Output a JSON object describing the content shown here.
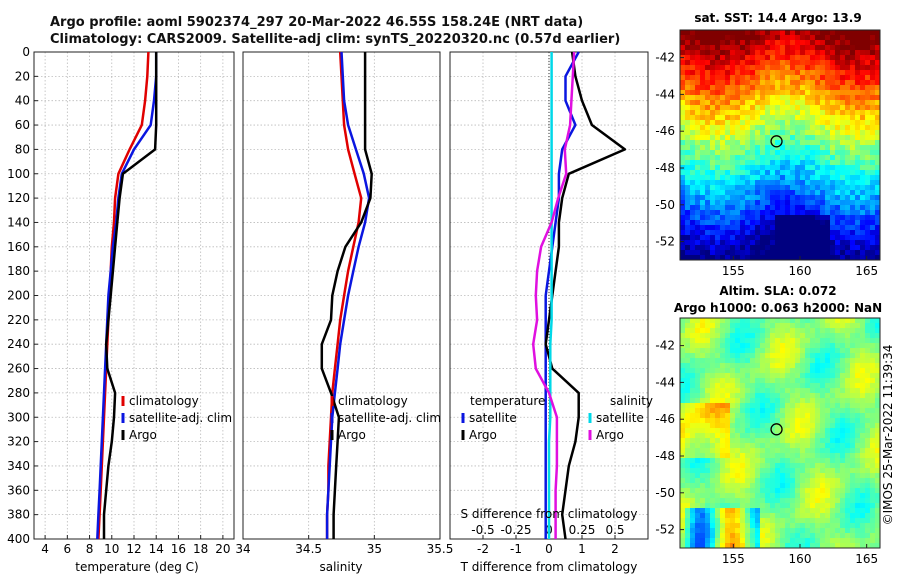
{
  "titles": {
    "line1": "Argo profile: aoml 5902374_297 20-Mar-2022 46.55S 158.24E (NRT data)",
    "line2": "Climatology: CARS2009. Satellite-adj clim: synTS_20220320.nc (0.57d earlier)"
  },
  "colors": {
    "climatology": "#e00000",
    "satellite": "#0a16e0",
    "argo": "#000000",
    "sat_salinity": "#00d8e8",
    "argo_salinity_diff": "#e010e0"
  },
  "depth_axis": {
    "ylim": [
      0,
      400
    ],
    "ticks": [
      0,
      20,
      40,
      60,
      80,
      100,
      120,
      140,
      160,
      180,
      200,
      220,
      240,
      260,
      280,
      300,
      320,
      340,
      360,
      380,
      400
    ]
  },
  "chart_data": [
    {
      "type": "line",
      "title": "",
      "xlabel": "temperature (deg C)",
      "xlim": [
        3,
        21
      ],
      "xticks": [
        4,
        6,
        8,
        10,
        12,
        14,
        16,
        18,
        20
      ],
      "depth": [
        0,
        20,
        40,
        60,
        80,
        100,
        120,
        140,
        160,
        180,
        200,
        220,
        240,
        260,
        280,
        300,
        320,
        340,
        360,
        380,
        400
      ],
      "series": [
        {
          "name": "climatology",
          "color": "#e00000",
          "values": [
            13.3,
            13.2,
            13.0,
            12.7,
            11.6,
            10.6,
            10.3,
            10.2,
            10.0,
            9.9,
            9.8,
            9.7,
            9.6,
            9.5,
            9.4,
            9.3,
            9.2,
            9.1,
            9.0,
            8.9,
            8.8
          ]
        },
        {
          "name": "satellite-adj. clim",
          "color": "#0a16e0",
          "values": [
            14.0,
            14.0,
            13.8,
            13.5,
            12.0,
            10.9,
            10.6,
            10.4,
            10.1,
            9.9,
            9.7,
            9.6,
            9.5,
            9.4,
            9.3,
            9.2,
            9.1,
            9.0,
            8.9,
            8.8,
            8.7
          ]
        },
        {
          "name": "Argo",
          "color": "#000000",
          "values": [
            14.0,
            14.0,
            14.0,
            14.0,
            13.9,
            11.0,
            10.7,
            10.5,
            10.3,
            10.1,
            9.9,
            9.7,
            9.5,
            9.6,
            10.3,
            10.2,
            10.0,
            9.7,
            9.5,
            9.3,
            9.3
          ]
        }
      ],
      "legend": [
        "climatology",
        "satellite-adj. clim",
        "Argo"
      ],
      "legend_placement": "bottom-right"
    },
    {
      "type": "line",
      "xlabel": "salinity",
      "xlim": [
        34,
        35.5
      ],
      "xticks": [
        34,
        34.5,
        35,
        35.5
      ],
      "depth": [
        0,
        20,
        40,
        60,
        80,
        100,
        120,
        140,
        160,
        180,
        200,
        220,
        240,
        260,
        280,
        300,
        320,
        340,
        360,
        380,
        400
      ],
      "series": [
        {
          "name": "climatology",
          "color": "#e00000",
          "values": [
            34.74,
            34.75,
            34.76,
            34.77,
            34.8,
            34.85,
            34.9,
            34.88,
            34.84,
            34.8,
            34.77,
            34.74,
            34.72,
            34.7,
            34.68,
            34.67,
            34.66,
            34.65,
            34.65,
            34.64,
            34.64
          ]
        },
        {
          "name": "satellite-adj. clim",
          "color": "#0a16e0",
          "values": [
            34.75,
            34.76,
            34.77,
            34.8,
            34.86,
            34.92,
            34.96,
            34.93,
            34.88,
            34.84,
            34.8,
            34.77,
            34.74,
            34.72,
            34.7,
            34.68,
            34.67,
            34.66,
            34.65,
            34.64,
            34.64
          ]
        },
        {
          "name": "Argo",
          "color": "#000000",
          "values": [
            34.93,
            34.93,
            34.93,
            34.93,
            34.93,
            34.98,
            34.97,
            34.9,
            34.78,
            34.72,
            34.68,
            34.67,
            34.6,
            34.6,
            34.67,
            34.73,
            34.72,
            34.71,
            34.7,
            34.69,
            34.69
          ]
        }
      ],
      "legend": [
        "climatology",
        "satellite-adj. clim",
        "Argo"
      ],
      "legend_placement": "bottom-right"
    },
    {
      "type": "line",
      "xlabel": "T difference from climatology",
      "top_label": "S difference from climatology",
      "xlim": [
        -3,
        3
      ],
      "xticks": [
        -2,
        -1,
        0,
        1,
        2
      ],
      "top_xlim": [
        -0.75,
        0.75
      ],
      "top_xticks": [
        -0.5,
        -0.25,
        0,
        0.25,
        0.5
      ],
      "depth": [
        0,
        20,
        40,
        60,
        80,
        100,
        120,
        140,
        160,
        180,
        200,
        220,
        240,
        260,
        280,
        300,
        320,
        340,
        360,
        380,
        400
      ],
      "series": [
        {
          "name": "satellite (temperature)",
          "color": "#0a16e0",
          "values": [
            0.9,
            0.5,
            0.5,
            0.8,
            0.4,
            0.3,
            0.3,
            0.2,
            0.1,
            0.0,
            -0.1,
            -0.1,
            -0.1,
            -0.1,
            -0.1,
            -0.1,
            -0.1,
            -0.1,
            -0.1,
            -0.1,
            -0.1
          ]
        },
        {
          "name": "Argo (temperature)",
          "color": "#000000",
          "values": [
            0.7,
            0.8,
            1.0,
            1.3,
            2.3,
            0.6,
            0.4,
            0.3,
            0.3,
            0.2,
            0.1,
            0.0,
            -0.1,
            0.1,
            0.9,
            0.9,
            0.8,
            0.6,
            0.5,
            0.4,
            0.5
          ]
        },
        {
          "name": "satellite (salinity)",
          "color": "#00d8e8",
          "values": [
            0.02,
            0.02,
            0.02,
            0.02,
            0.02,
            0.02,
            0.02,
            0.02,
            0.02,
            0.02,
            0.02,
            0.02,
            0.01,
            0.01,
            0.01,
            0.01,
            0.0,
            0.0,
            0.0,
            0.0,
            0.0
          ]
        },
        {
          "name": "Argo (salinity)",
          "color": "#e010e0",
          "values": [
            0.19,
            0.18,
            0.17,
            0.16,
            0.12,
            0.13,
            0.07,
            0.02,
            -0.06,
            -0.09,
            -0.1,
            -0.09,
            -0.12,
            -0.1,
            0.0,
            0.06,
            0.06,
            0.06,
            0.05,
            0.05,
            0.05
          ]
        }
      ],
      "legend_left_title": "temperature",
      "legend_right_title": "salinity",
      "legend_left": [
        "satellite",
        "Argo"
      ],
      "legend_right": [
        "satellite",
        "Argo"
      ]
    },
    {
      "type": "heatmap",
      "title": "sat. SST: 14.4 Argo: 13.9",
      "xlim": [
        151,
        166
      ],
      "ylim": [
        -53,
        -40.5
      ],
      "xticks": [
        155,
        160,
        165
      ],
      "yticks": [
        -42,
        -44,
        -46,
        -48,
        -50,
        -52
      ],
      "marker": {
        "lon": 158.24,
        "lat": -46.55
      }
    },
    {
      "type": "heatmap",
      "title_line1": "Altim. SLA: 0.072",
      "title_line2": "Argo h1000: 0.063 h2000: NaN",
      "xlim": [
        151,
        166
      ],
      "ylim": [
        -53,
        -40.5
      ],
      "xticks": [
        155,
        160,
        165
      ],
      "yticks": [
        -42,
        -44,
        -46,
        -48,
        -50,
        -52
      ],
      "marker": {
        "lon": 158.24,
        "lat": -46.55
      }
    }
  ],
  "watermark": "©IMOS 25-Mar-2022 11:39:34"
}
